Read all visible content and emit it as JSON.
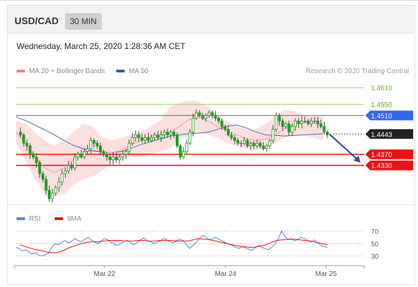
{
  "header": {
    "symbol": "USD/CAD",
    "timeframe": "30 MIN"
  },
  "timestamp": "Wednesday, March 25, 2020 1:28:36 AM CET",
  "credit": "Research © 2020 Trading Central",
  "legend_main": [
    {
      "label": "MA 20 + Bollinger Bands",
      "color": "#f08080"
    },
    {
      "label": "MA 50",
      "color": "#3a5aa8"
    }
  ],
  "legend_rsi": [
    {
      "label": "RSI",
      "color": "#5b7fd8"
    },
    {
      "label": "9MA",
      "color": "#ee1111"
    }
  ],
  "colors": {
    "candle": "#1a9e1a",
    "wick": "#222222",
    "ma20": "#ef9a9a",
    "ma50": "#4a66b0",
    "band": "#fbd5d5",
    "resistance": "#99cc66",
    "pivot": "#3366ee",
    "support": "#ee1111",
    "price": "#222222",
    "arrow": "#2a4f9a"
  },
  "chart_data": [
    {
      "type": "candlestick",
      "title": "",
      "ylim": [
        1.4195,
        1.4665
      ],
      "x_ticks": [
        "Mar 22",
        "Mar 24",
        "Mar 25"
      ],
      "levels": [
        {
          "label": "1.4610",
          "value": 1.461,
          "kind": "resistance"
        },
        {
          "label": "1.4550",
          "value": 1.455,
          "kind": "resistance"
        },
        {
          "label": "1.4510",
          "value": 1.451,
          "kind": "pivot"
        },
        {
          "label": "1.4443",
          "value": 1.4443,
          "kind": "last_price"
        },
        {
          "label": "1.4370",
          "value": 1.437,
          "kind": "support"
        },
        {
          "label": "1.4330",
          "value": 1.433,
          "kind": "support"
        }
      ],
      "close_path": [
        1.445,
        1.444,
        1.441,
        1.44,
        1.437,
        1.436,
        1.434,
        1.43,
        1.428,
        1.424,
        1.421,
        1.423,
        1.425,
        1.427,
        1.43,
        1.431,
        1.433,
        1.432,
        1.436,
        1.437,
        1.436,
        1.438,
        1.439,
        1.442,
        1.441,
        1.44,
        1.438,
        1.437,
        1.436,
        1.435,
        1.436,
        1.435,
        1.436,
        1.437,
        1.438,
        1.441,
        1.443,
        1.444,
        1.443,
        1.442,
        1.443,
        1.442,
        1.443,
        1.444,
        1.443,
        1.444,
        1.445,
        1.444,
        1.445,
        1.444,
        1.44,
        1.436,
        1.438,
        1.441,
        1.445,
        1.45,
        1.452,
        1.451,
        1.45,
        1.451,
        1.452,
        1.451,
        1.45,
        1.449,
        1.447,
        1.446,
        1.444,
        1.443,
        1.442,
        1.441,
        1.441,
        1.442,
        1.44,
        1.441,
        1.44,
        1.441,
        1.44,
        1.439,
        1.44,
        1.442,
        1.446,
        1.451,
        1.449,
        1.447,
        1.448,
        1.445,
        1.447,
        1.449,
        1.448,
        1.449,
        1.449,
        1.448,
        1.449,
        1.449,
        1.448,
        1.447,
        1.445,
        1.444
      ],
      "ma50": [
        1.4505,
        1.4492,
        1.4475,
        1.4458,
        1.444,
        1.442,
        1.4402,
        1.439,
        1.4382,
        1.4378,
        1.4376,
        1.438,
        1.4392,
        1.4405,
        1.4415,
        1.4425,
        1.4435,
        1.444,
        1.4444,
        1.4446,
        1.445,
        1.446,
        1.4472,
        1.4475,
        1.4465,
        1.445,
        1.444,
        1.4438,
        1.4436,
        1.4438,
        1.444,
        1.4442,
        1.4444
      ],
      "ma20": [
        1.445,
        1.441,
        1.436,
        1.432,
        1.4305,
        1.432,
        1.435,
        1.4375,
        1.4385,
        1.438,
        1.4375,
        1.4385,
        1.4405,
        1.442,
        1.4435,
        1.444,
        1.4445,
        1.447,
        1.4495,
        1.4505,
        1.449,
        1.447,
        1.4455,
        1.444,
        1.4425,
        1.442,
        1.4425,
        1.444,
        1.4462,
        1.4478,
        1.4486,
        1.448,
        1.447
      ],
      "band_upper": [
        1.449,
        1.448,
        1.445,
        1.442,
        1.44,
        1.442,
        1.445,
        1.448,
        1.447,
        1.443,
        1.442,
        1.443,
        1.444,
        1.445,
        1.447,
        1.449,
        1.454,
        1.4555,
        1.4565,
        1.456,
        1.454,
        1.451,
        1.449,
        1.447,
        1.446,
        1.446,
        1.448,
        1.451,
        1.453,
        1.4525,
        1.451,
        1.4505,
        1.4505
      ],
      "band_lower": [
        1.441,
        1.435,
        1.428,
        1.423,
        1.422,
        1.4225,
        1.426,
        1.428,
        1.429,
        1.431,
        1.434,
        1.435,
        1.436,
        1.436,
        1.437,
        1.438,
        1.439,
        1.442,
        1.444,
        1.445,
        1.444,
        1.443,
        1.441,
        1.44,
        1.439,
        1.4385,
        1.439,
        1.441,
        1.443,
        1.444,
        1.444,
        1.443,
        1.442
      ],
      "projection": {
        "from": 1.4443,
        "to": 1.434
      }
    },
    {
      "type": "line",
      "title": "",
      "ylim": [
        20,
        80
      ],
      "y_ticks": [
        70,
        50,
        30
      ],
      "series": [
        {
          "name": "RSI",
          "values": [
            44,
            42,
            38,
            40,
            36,
            33,
            35,
            31,
            30,
            32,
            35,
            45,
            50,
            48,
            52,
            55,
            51,
            54,
            58,
            55,
            53,
            57,
            60,
            56,
            52,
            50,
            54,
            58,
            56,
            52,
            49,
            47,
            50,
            53,
            55,
            51,
            48,
            52,
            56,
            59,
            55,
            53,
            50,
            52,
            54,
            58,
            56,
            53,
            51,
            55,
            57,
            55,
            48,
            42,
            47,
            52,
            58,
            63,
            60,
            56,
            58,
            60,
            57,
            54,
            51,
            49,
            47,
            44,
            42,
            45,
            43,
            41,
            39,
            43,
            47,
            44,
            42,
            40,
            44,
            49,
            57,
            70,
            62,
            56,
            58,
            54,
            57,
            60,
            58,
            55,
            52,
            56,
            51,
            47,
            45,
            44
          ]
        },
        {
          "name": "9MA",
          "values": [
            48,
            45,
            42,
            40,
            38,
            36,
            35,
            36,
            40,
            44,
            47,
            50,
            52,
            53,
            53,
            54,
            55,
            55,
            55,
            54,
            54,
            55,
            55,
            54,
            54,
            55,
            55,
            55,
            54,
            54,
            54,
            56,
            58,
            57,
            56,
            54,
            52,
            50,
            48,
            46,
            45,
            44,
            44,
            46,
            48,
            52,
            55,
            56,
            57,
            57,
            56,
            55,
            54,
            52,
            50,
            48
          ]
        }
      ]
    }
  ]
}
